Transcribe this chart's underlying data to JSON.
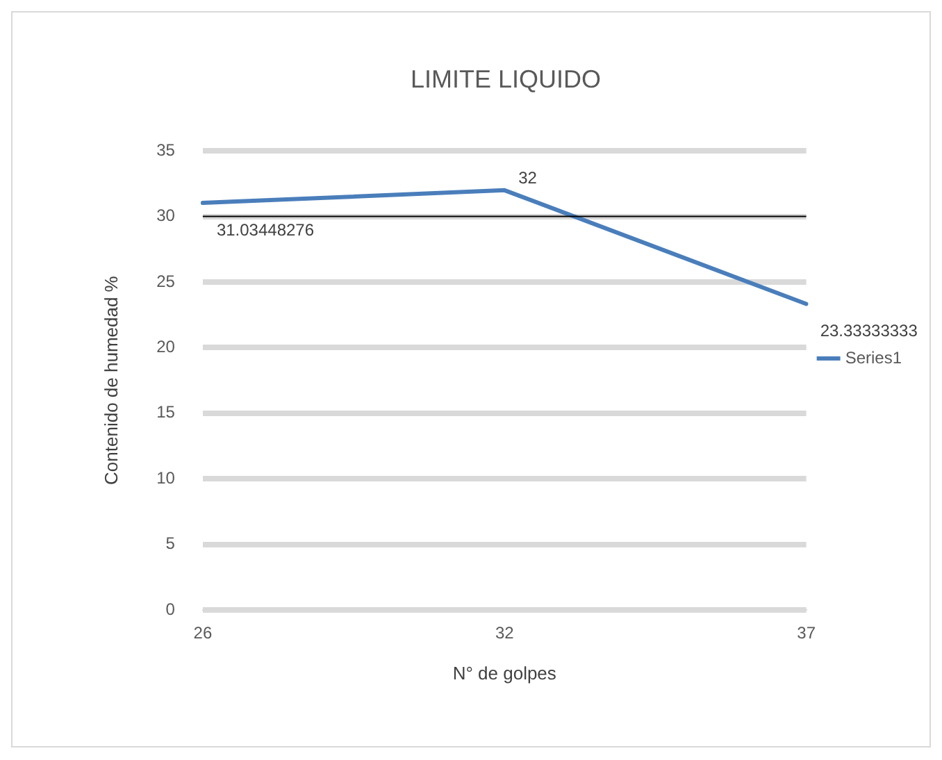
{
  "chart_data": {
    "type": "line",
    "title": "LIMITE LIQUIDO",
    "xlabel": "N° de golpes",
    "ylabel": "Contenido de humedad %",
    "categories": [
      "26",
      "32",
      "37"
    ],
    "series": [
      {
        "name": "Series1",
        "color": "#4a7ebb",
        "values": [
          31.03448276,
          32,
          23.33333333
        ]
      }
    ],
    "ylim": [
      0,
      35
    ],
    "yticks": [
      0,
      5,
      10,
      15,
      20,
      25,
      30,
      35
    ],
    "grid": "y",
    "legend": "right",
    "marker": "none",
    "line_style": "solid",
    "data_labels": true,
    "ref_lines": [
      {
        "axis": "y",
        "value": 30,
        "color": "#000000"
      }
    ]
  }
}
